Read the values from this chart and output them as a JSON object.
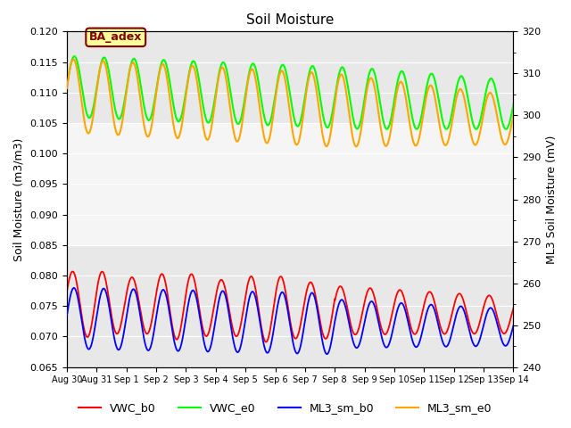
{
  "title": "Soil Moisture",
  "ylabel_left": "Soil Moisture (m3/m3)",
  "ylabel_right": "ML3 Soil Moisture (mV)",
  "xlabel": "",
  "ylim_left": [
    0.065,
    0.12
  ],
  "ylim_right": [
    240,
    320
  ],
  "annotation_text": "BA_adex",
  "annotation_facecolor": "#FFFF99",
  "annotation_edgecolor": "#800000",
  "background_main": "#E8E8E8",
  "background_mid": "#F5F5F5",
  "colors": {
    "VWC_b0": "#FF0000",
    "VWC_e0": "#00FF00",
    "ML3_sm_b0": "#0000FF",
    "ML3_sm_e0": "#FFA500"
  },
  "tick_labels": [
    "Aug 30",
    "Aug 31",
    "Sep 1",
    "Sep 2",
    "Sep 3",
    "Sep 4",
    "Sep 5",
    "Sep 6",
    "Sep 7",
    "Sep 8",
    "Sep 9",
    "Sep 10",
    "Sep 11",
    "Sep 12",
    "Sep 13",
    "Sep 14"
  ],
  "tick_positions": [
    0,
    1,
    2,
    3,
    4,
    5,
    6,
    7,
    8,
    9,
    10,
    11,
    12,
    13,
    14,
    15
  ],
  "right_ticks": [
    240,
    250,
    260,
    270,
    280,
    290,
    300,
    310,
    320
  ],
  "left_ticks": [
    0.065,
    0.07,
    0.075,
    0.08,
    0.085,
    0.09,
    0.095,
    0.1,
    0.105,
    0.11,
    0.115,
    0.12
  ]
}
